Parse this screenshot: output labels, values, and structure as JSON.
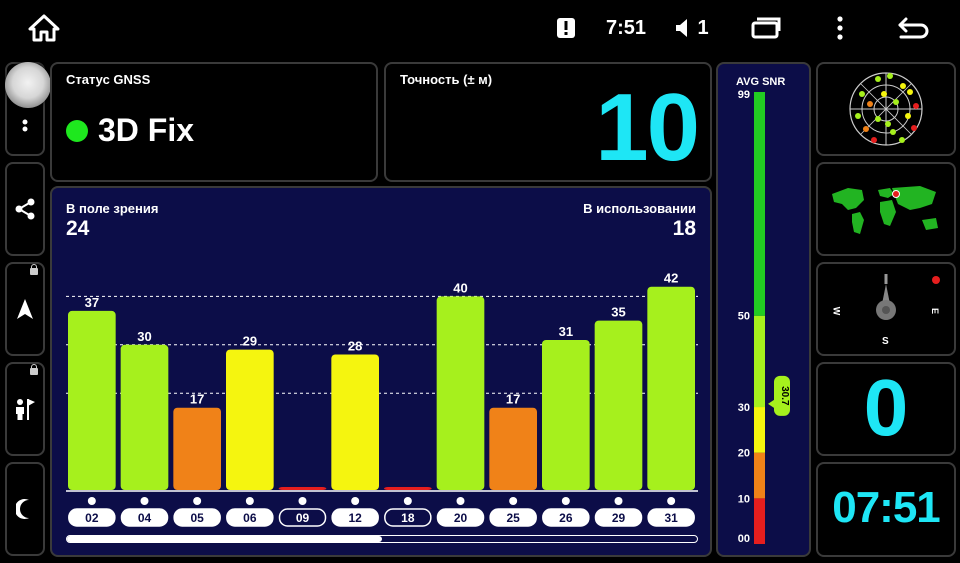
{
  "status_bar": {
    "time": "7:51",
    "volume_level": "1",
    "icons": [
      "home-icon",
      "alert-icon",
      "volume-icon",
      "recents-icon",
      "more-vert-icon",
      "back-icon"
    ]
  },
  "sidebar": {
    "items": [
      "more-menu",
      "share",
      "navigation",
      "person-flag",
      "night-mode"
    ]
  },
  "gnss_status": {
    "label": "Статус GNSS",
    "value": "3D Fix",
    "indicator_color": "#1ee81e"
  },
  "accuracy": {
    "label": "Точность (± м)",
    "value": "10"
  },
  "satellites": {
    "in_view_label": "В поле зрения",
    "in_view_count": "24",
    "in_use_label": "В использовании",
    "in_use_count": "18",
    "scroll_position": 0.5
  },
  "chart_data": {
    "type": "bar",
    "categories": [
      "02",
      "04",
      "05",
      "06",
      "09",
      "12",
      "18",
      "20",
      "25",
      "26",
      "29",
      "31"
    ],
    "values": [
      37,
      30,
      17,
      29,
      0,
      28,
      0,
      40,
      17,
      31,
      35,
      42
    ],
    "value_labels": [
      "37",
      "30",
      "17",
      "29",
      "",
      "28",
      "",
      "40",
      "17",
      "31",
      "35",
      "42"
    ],
    "colors": [
      "#a6f01d",
      "#a6f01d",
      "#f08218",
      "#f5f50f",
      "#e61e1e",
      "#f5f50f",
      "#e61e1e",
      "#a6f01d",
      "#f08218",
      "#a6f01d",
      "#a6f01d",
      "#a6f01d"
    ],
    "in_use": [
      true,
      true,
      true,
      true,
      false,
      true,
      false,
      true,
      true,
      true,
      true,
      true
    ],
    "ylim": [
      0,
      50
    ],
    "gridlines": [
      20,
      30,
      40
    ]
  },
  "snr": {
    "title": "AVG SNR",
    "avg_value": "30.7",
    "avg": 30.7,
    "max": 99,
    "ticks": [
      "99",
      "50",
      "30",
      "20",
      "10",
      "00"
    ],
    "tick_values": [
      99,
      50,
      30,
      20,
      10,
      0
    ],
    "bands": [
      {
        "from": 0,
        "to": 10,
        "color": "#e61e1e"
      },
      {
        "from": 10,
        "to": 20,
        "color": "#f08218"
      },
      {
        "from": 20,
        "to": 30,
        "color": "#f5f50f"
      },
      {
        "from": 30,
        "to": 50,
        "color": "#a6f01d"
      },
      {
        "from": 50,
        "to": 99,
        "color": "#22cc22"
      }
    ]
  },
  "compass": {
    "w": "W",
    "e": "E",
    "s": "S"
  },
  "speed": {
    "value": "0"
  },
  "clock": {
    "value": "07:51"
  }
}
